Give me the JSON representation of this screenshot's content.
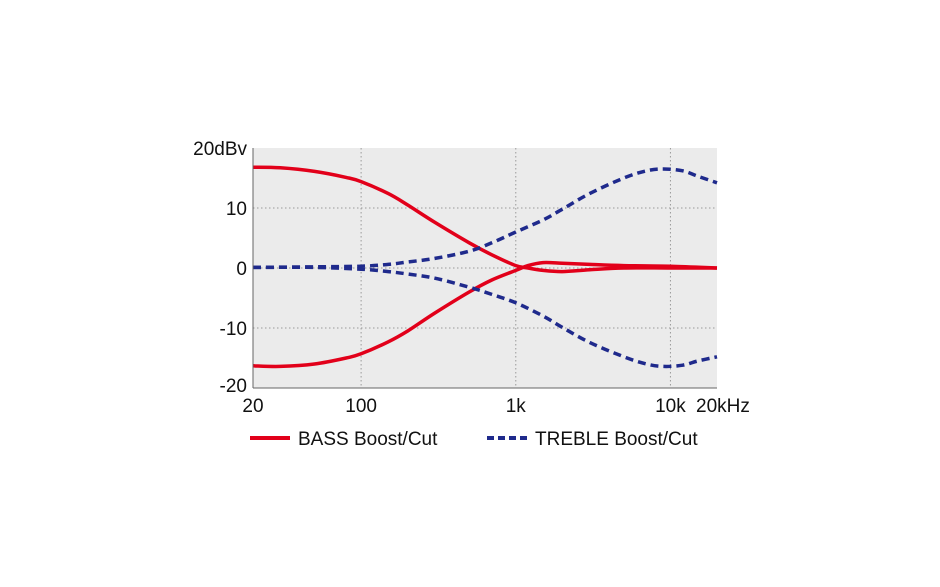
{
  "chart_data": {
    "type": "line",
    "x_scale": "log",
    "xlim": [
      20,
      20000
    ],
    "ylim": [
      -20,
      20
    ],
    "grid": true,
    "legend_position": "bottom",
    "x_ticks": [
      {
        "value": 20,
        "label": "20"
      },
      {
        "value": 100,
        "label": "100"
      },
      {
        "value": 1000,
        "label": "1k"
      },
      {
        "value": 10000,
        "label": "10k"
      },
      {
        "value": 20000,
        "label": "20kHz"
      }
    ],
    "y_ticks": [
      {
        "value": 20,
        "label": "20dBv"
      },
      {
        "value": 10,
        "label": "10"
      },
      {
        "value": 0,
        "label": "0"
      },
      {
        "value": -10,
        "label": "-10"
      },
      {
        "value": -20,
        "label": "-20"
      }
    ],
    "series": [
      {
        "name": "BASS Boost/Cut",
        "color": "#e2001a",
        "style": "solid",
        "curves": [
          [
            [
              20,
              16.8
            ],
            [
              30,
              16.7
            ],
            [
              50,
              16.1
            ],
            [
              80,
              15.1
            ],
            [
              100,
              14.4
            ],
            [
              150,
              12.4
            ],
            [
              200,
              10.5
            ],
            [
              300,
              7.6
            ],
            [
              500,
              4.2
            ],
            [
              700,
              2.2
            ],
            [
              1000,
              0.4
            ],
            [
              1200,
              0.0
            ],
            [
              1500,
              -0.4
            ],
            [
              2000,
              -0.6
            ],
            [
              3000,
              -0.3
            ],
            [
              5000,
              0.0
            ],
            [
              10000,
              0.0
            ],
            [
              20000,
              0.0
            ]
          ],
          [
            [
              20,
              -16.3
            ],
            [
              30,
              -16.4
            ],
            [
              50,
              -16.0
            ],
            [
              80,
              -15.0
            ],
            [
              100,
              -14.3
            ],
            [
              150,
              -12.3
            ],
            [
              200,
              -10.5
            ],
            [
              300,
              -7.5
            ],
            [
              500,
              -4.0
            ],
            [
              700,
              -2.0
            ],
            [
              1000,
              -0.4
            ],
            [
              1200,
              0.4
            ],
            [
              1500,
              0.9
            ],
            [
              2000,
              0.8
            ],
            [
              3000,
              0.6
            ],
            [
              5000,
              0.4
            ],
            [
              10000,
              0.3
            ],
            [
              20000,
              0.0
            ]
          ]
        ]
      },
      {
        "name": "TREBLE Boost/Cut",
        "color": "#1f2a8c",
        "style": "dashed",
        "curves": [
          [
            [
              20,
              0.1
            ],
            [
              50,
              0.2
            ],
            [
              100,
              0.3
            ],
            [
              150,
              0.6
            ],
            [
              200,
              1.0
            ],
            [
              300,
              1.6
            ],
            [
              500,
              2.8
            ],
            [
              700,
              4.2
            ],
            [
              1000,
              6.0
            ],
            [
              1500,
              8.0
            ],
            [
              2000,
              9.8
            ],
            [
              3000,
              12.4
            ],
            [
              5000,
              15.0
            ],
            [
              7000,
              16.2
            ],
            [
              9000,
              16.5
            ],
            [
              12000,
              16.2
            ],
            [
              15000,
              15.3
            ],
            [
              20000,
              14.2
            ]
          ],
          [
            [
              20,
              0.1
            ],
            [
              50,
              0.1
            ],
            [
              100,
              -0.2
            ],
            [
              150,
              -0.6
            ],
            [
              200,
              -1.0
            ],
            [
              300,
              -1.7
            ],
            [
              500,
              -3.2
            ],
            [
              700,
              -4.4
            ],
            [
              1000,
              -5.8
            ],
            [
              1500,
              -8.0
            ],
            [
              2000,
              -9.9
            ],
            [
              3000,
              -12.4
            ],
            [
              5000,
              -14.8
            ],
            [
              7000,
              -16.0
            ],
            [
              9000,
              -16.4
            ],
            [
              12000,
              -16.2
            ],
            [
              15000,
              -15.5
            ],
            [
              20000,
              -14.8
            ]
          ]
        ]
      }
    ]
  }
}
